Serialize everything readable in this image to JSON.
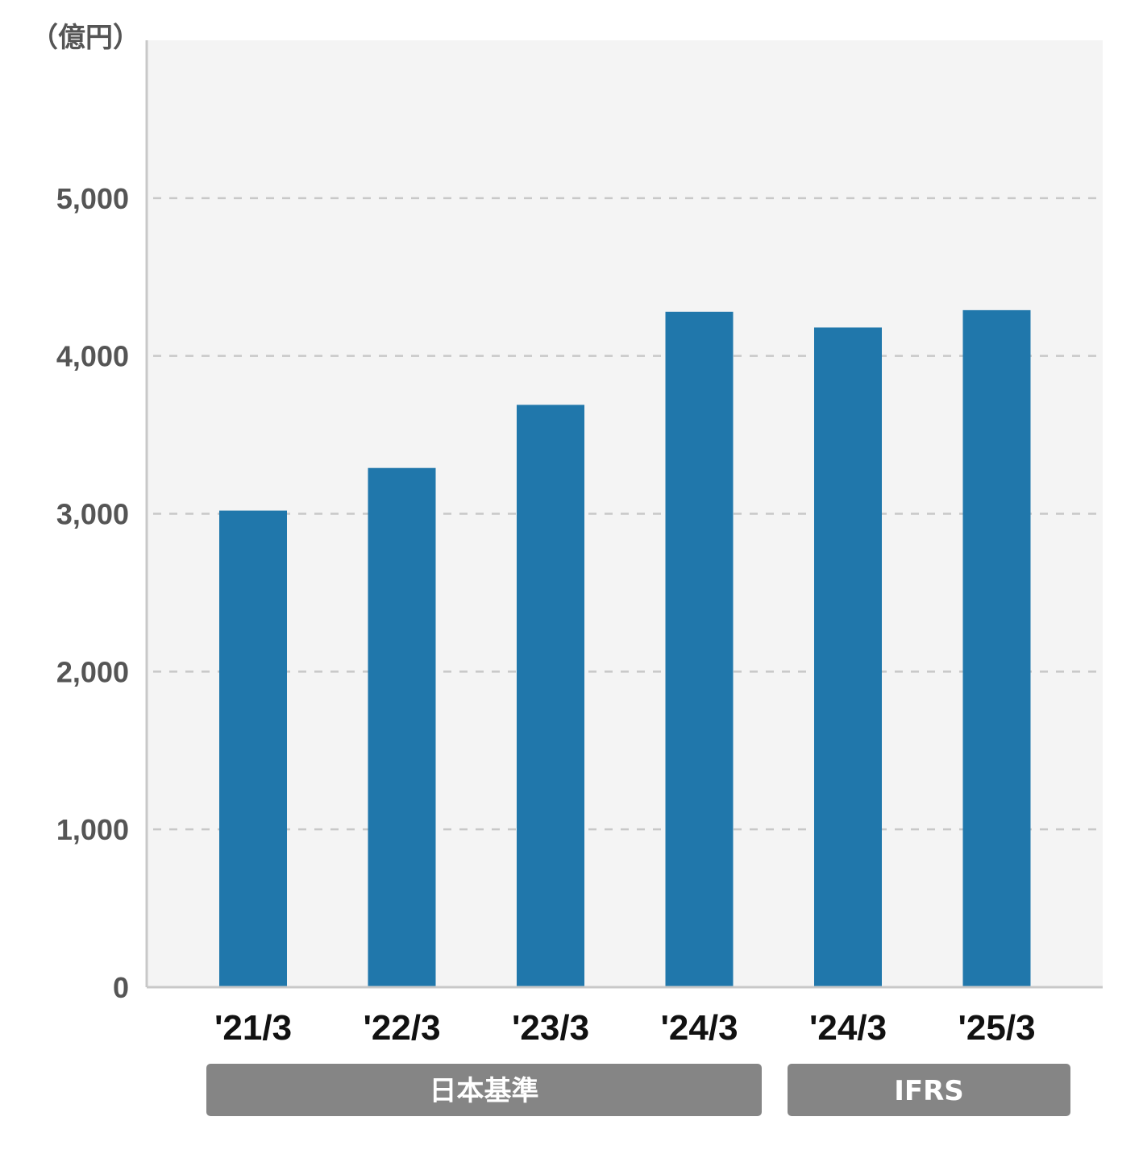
{
  "chart_data": {
    "type": "bar",
    "unit_label": "（億円）",
    "categories": [
      "'21/3",
      "'22/3",
      "'23/3",
      "'24/3",
      "'24/3",
      "'25/3"
    ],
    "values": [
      3020,
      3290,
      3690,
      4280,
      4180,
      4290
    ],
    "ylim": [
      0,
      6000
    ],
    "yticks": [
      0,
      1000,
      2000,
      3000,
      4000,
      5000
    ],
    "ytick_labels": [
      "0",
      "1,000",
      "2,000",
      "3,000",
      "4,000",
      "5,000"
    ],
    "grid": true,
    "groups": [
      {
        "label": "日本基準",
        "category_indices": [
          0,
          1,
          2,
          3
        ]
      },
      {
        "label": "IFRS",
        "category_indices": [
          4,
          5
        ]
      }
    ],
    "colors": {
      "bar": "#2077AB",
      "plot_background": "#F4F4F4",
      "grid": "#C8C8C8",
      "axis": "#C8C8C8",
      "group_box": "#858585"
    }
  }
}
